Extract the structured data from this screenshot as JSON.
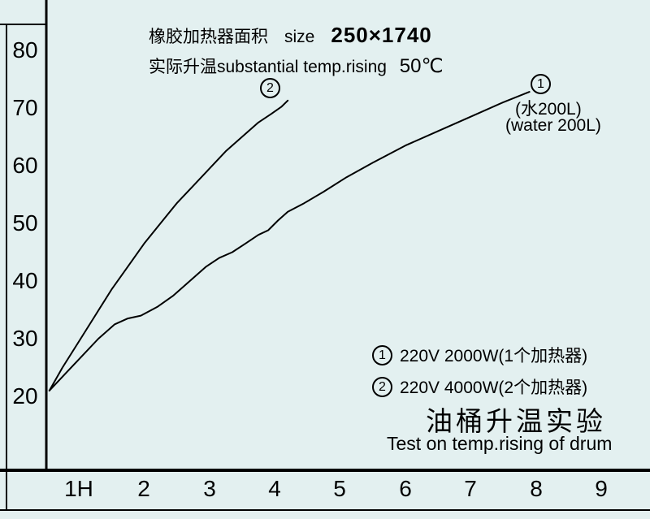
{
  "chart_data": {
    "type": "line",
    "title": "油桶升温实验",
    "subtitle": "Test on temp.rising of drum",
    "header": {
      "area_label": "橡胶加热器面积",
      "size_label": "size",
      "size_value": "250×1740",
      "rising_label": "实际升温substantial temp.rising",
      "rising_value": "50℃"
    },
    "xticks": [
      "1H",
      "2",
      "3",
      "4",
      "5",
      "6",
      "7",
      "8",
      "9"
    ],
    "yticks": [
      "80",
      "70",
      "60",
      "50",
      "40",
      "30",
      "20"
    ],
    "ylim": [
      20,
      80
    ],
    "xlim": [
      0.5,
      9
    ],
    "grid": false,
    "legend_position": "lower-right",
    "colors": {
      "background": "#e3f0f0",
      "line": "#000000"
    },
    "series": [
      {
        "marker": "1",
        "name": "220V 2000W(1个加热器)",
        "annotation_line1": "(水200L)",
        "annotation_line2": "(water 200L)",
        "points": [
          [
            0.55,
            21
          ],
          [
            0.8,
            24
          ],
          [
            1.05,
            27
          ],
          [
            1.3,
            30
          ],
          [
            1.55,
            32.5
          ],
          [
            1.75,
            33.5
          ],
          [
            1.95,
            34
          ],
          [
            2.2,
            35.5
          ],
          [
            2.45,
            37.5
          ],
          [
            2.7,
            40
          ],
          [
            2.95,
            42.5
          ],
          [
            3.15,
            44
          ],
          [
            3.35,
            45
          ],
          [
            3.55,
            46.5
          ],
          [
            3.75,
            48
          ],
          [
            3.9,
            48.8
          ],
          [
            4.05,
            50.5
          ],
          [
            4.2,
            52
          ],
          [
            4.45,
            53.5
          ],
          [
            4.75,
            55.5
          ],
          [
            5.1,
            58
          ],
          [
            5.5,
            60.5
          ],
          [
            6.0,
            63.5
          ],
          [
            6.5,
            66
          ],
          [
            7.0,
            68.5
          ],
          [
            7.5,
            71
          ],
          [
            7.9,
            72.8
          ]
        ]
      },
      {
        "marker": "2",
        "name": "220V 4000W(2个加热器)",
        "points": [
          [
            0.55,
            21
          ],
          [
            0.75,
            25
          ],
          [
            1.0,
            29.5
          ],
          [
            1.25,
            34
          ],
          [
            1.5,
            38.5
          ],
          [
            1.75,
            42.5
          ],
          [
            2.0,
            46.5
          ],
          [
            2.25,
            50
          ],
          [
            2.5,
            53.5
          ],
          [
            2.75,
            56.5
          ],
          [
            3.0,
            59.5
          ],
          [
            3.25,
            62.5
          ],
          [
            3.5,
            65
          ],
          [
            3.75,
            67.5
          ],
          [
            3.95,
            69
          ],
          [
            4.1,
            70.2
          ],
          [
            4.2,
            71.3
          ]
        ]
      }
    ],
    "legend": [
      {
        "marker": "1",
        "label": "220V 2000W(1个加热器)"
      },
      {
        "marker": "2",
        "label": "220V 4000W(2个加热器)"
      }
    ]
  }
}
